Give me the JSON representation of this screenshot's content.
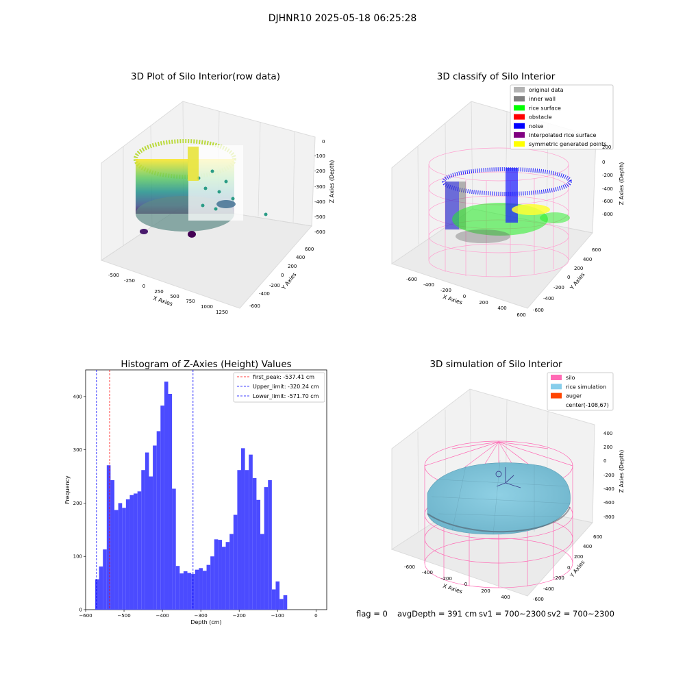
{
  "figure": {
    "suptitle": "DJHNR10 2025-05-18 06:25:28",
    "footer": {
      "flag": "flag = 0",
      "avg_depth": "avgDepth = 391 cm",
      "sv1": "sv1 = 700~2300",
      "sv2": "sv2 = 700~2300"
    }
  },
  "chart_data": [
    {
      "type": "scatter3d",
      "title": "3D Plot of Silo Interior(row data)",
      "xlabel": "X Axies",
      "ylabel": "Y Axies",
      "zlabel": "Z Axies (Depth)",
      "x_ticks": [
        "-500",
        "-250",
        "0",
        "250",
        "500",
        "750",
        "1000",
        "1250"
      ],
      "y_ticks": [
        "-600",
        "-400",
        "-200",
        "0",
        "200",
        "400",
        "600"
      ],
      "z_ticks": [
        "0",
        "-100",
        "-200",
        "-300",
        "-400",
        "-500",
        "-600"
      ],
      "colormap": "viridis"
    },
    {
      "type": "scatter3d",
      "title": "3D classify of Silo Interior",
      "xlabel": "X Axies",
      "ylabel": "Y Axies",
      "zlabel": "Z Axies (Depth)",
      "x_ticks": [
        "-600",
        "-400",
        "-200",
        "0",
        "200",
        "400",
        "600"
      ],
      "y_ticks": [
        "-600",
        "-400",
        "-200",
        "0",
        "200",
        "400",
        "600"
      ],
      "z_ticks": [
        "200",
        "0",
        "-200",
        "-400",
        "-600",
        "-800"
      ],
      "legend_position": "top-right",
      "legend": [
        {
          "label": "original data",
          "color": "#b3b3b3"
        },
        {
          "label": "inner wall",
          "color": "#808080"
        },
        {
          "label": "rice surface",
          "color": "#00ff00"
        },
        {
          "label": "obstacle",
          "color": "#ff0000"
        },
        {
          "label": "noise",
          "color": "#0000ff"
        },
        {
          "label": "interpolated rice surface",
          "color": "#800080"
        },
        {
          "label": "symmetric generated points",
          "color": "#ffff00"
        }
      ]
    },
    {
      "type": "bar",
      "title": "Histogram of Z-Axies (Height) Values",
      "xlabel": "Depth (cm)",
      "ylabel": "Frequency",
      "xlim": [
        -600,
        28
      ],
      "ylim": [
        0,
        450
      ],
      "x_ticks": [
        -600,
        -500,
        -400,
        -300,
        -200,
        -100,
        0
      ],
      "y_ticks": [
        0,
        100,
        200,
        300,
        400
      ],
      "bin_start": -575,
      "bin_width": 10,
      "bar_color": "#4b4bff",
      "values": [
        57,
        81,
        113,
        271,
        243,
        187,
        200,
        191,
        207,
        215,
        218,
        222,
        262,
        295,
        250,
        308,
        335,
        383,
        428,
        405,
        227,
        82,
        68,
        72,
        69,
        67,
        75,
        78,
        73,
        84,
        100,
        132,
        131,
        118,
        127,
        142,
        178,
        262,
        303,
        262,
        291,
        247,
        206,
        142,
        230,
        243,
        38,
        53,
        20,
        27
      ],
      "vlines": [
        {
          "label": "first_peak: -537.41 cm",
          "x": -537.41,
          "color": "#ff0000"
        },
        {
          "label": "Upper_limit: -320.24 cm",
          "x": -320.24,
          "color": "#0000ff"
        },
        {
          "label": "Lower_limit: -571.70 cm",
          "x": -571.7,
          "color": "#0000ff"
        }
      ],
      "legend_position": "top-right"
    },
    {
      "type": "surface3d",
      "title": "3D simulation of Silo Interior",
      "xlabel": "X Axies",
      "ylabel": "Y Axies",
      "zlabel": "Z Axies (Depth)",
      "x_ticks": [
        "-600",
        "-400",
        "-200",
        "0",
        "200",
        "400"
      ],
      "y_ticks": [
        "-600",
        "-400",
        "-200",
        "0",
        "200",
        "400",
        "600"
      ],
      "z_ticks": [
        "400",
        "200",
        "0",
        "-200",
        "-400",
        "-600",
        "-800"
      ],
      "legend_position": "top-right",
      "legend": [
        {
          "label": "silo",
          "color": "#ff69b4"
        },
        {
          "label": "rice simulation",
          "color": "#87ceeb"
        },
        {
          "label": "auger",
          "color": "#ff4500"
        },
        {
          "label": "center(-108,67)",
          "color": "none"
        }
      ]
    }
  ]
}
